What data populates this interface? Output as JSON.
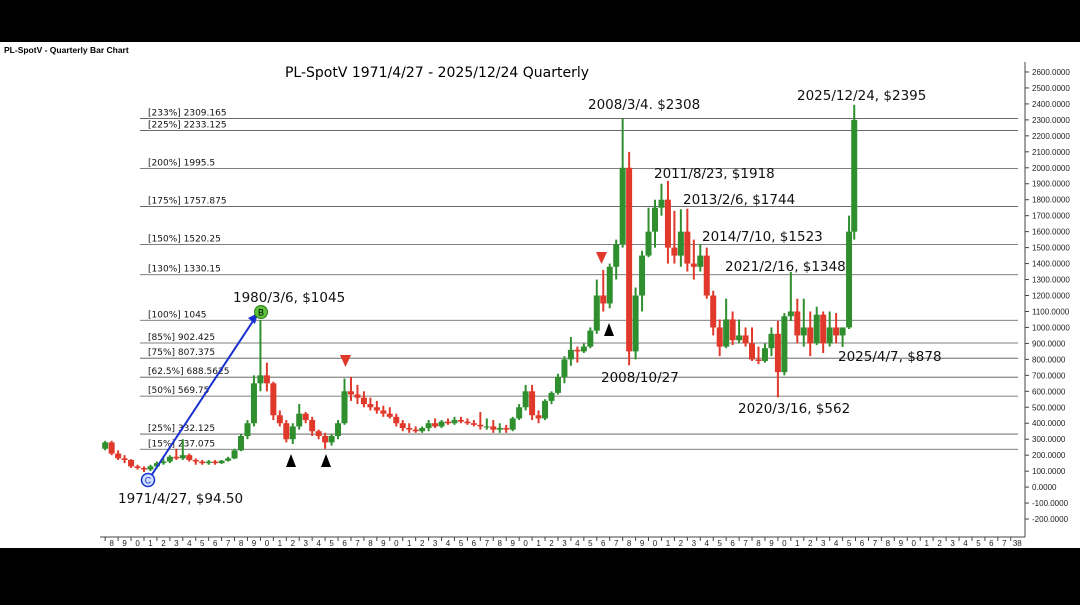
{
  "chart_data": {
    "type": "ohlc",
    "corner_title": "PL-SpotV - Quarterly Bar Chart",
    "title": "PL-SpotV 1971/4/27 - 2025/12/24 Quarterly",
    "up_color": "#2f8f2f",
    "down_color": "#e0382a",
    "x": [
      1968.0,
      1968.5,
      1969.0,
      1969.5,
      1970.0,
      1970.5,
      1971.0,
      1971.5,
      1972.0,
      1972.5,
      1973.0,
      1973.5,
      1974.0,
      1974.5,
      1975.0,
      1975.5,
      1976.0,
      1976.5,
      1977.0,
      1977.5,
      1978.0,
      1978.5,
      1979.0,
      1979.5,
      1980.0,
      1980.5,
      1981.0,
      1981.5,
      1982.0,
      1982.5,
      1983.0,
      1983.5,
      1984.0,
      1984.5,
      1985.0,
      1985.5,
      1986.0,
      1986.5,
      1987.0,
      1987.5,
      1988.0,
      1988.5,
      1989.0,
      1989.5,
      1990.0,
      1990.5,
      1991.0,
      1991.5,
      1992.0,
      1992.5,
      1993.0,
      1993.5,
      1994.0,
      1994.5,
      1995.0,
      1995.5,
      1996.0,
      1996.5,
      1997.0,
      1997.5,
      1998.0,
      1998.5,
      1999.0,
      1999.5,
      2000.0,
      2000.5,
      2001.0,
      2001.5,
      2002.0,
      2002.5,
      2003.0,
      2003.5,
      2004.0,
      2004.5,
      2005.0,
      2005.5,
      2006.0,
      2006.5,
      2007.0,
      2007.5,
      2008.0,
      2008.5,
      2009.0,
      2009.5,
      2010.0,
      2010.5,
      2011.0,
      2011.5,
      2012.0,
      2012.5,
      2013.0,
      2013.5,
      2014.0,
      2014.5,
      2015.0,
      2015.5,
      2016.0,
      2016.5,
      2017.0,
      2017.5,
      2018.0,
      2018.5,
      2019.0,
      2019.5,
      2020.0,
      2020.5,
      2021.0,
      2021.5,
      2022.0,
      2022.5,
      2023.0,
      2023.5,
      2024.0,
      2024.5,
      2025.0,
      2025.5,
      2025.9
    ],
    "open": [
      240,
      280,
      210,
      180,
      170,
      130,
      120,
      110,
      130,
      150,
      160,
      190,
      180,
      200,
      170,
      160,
      150,
      160,
      150,
      165,
      180,
      230,
      320,
      400,
      650,
      700,
      650,
      450,
      400,
      300,
      380,
      460,
      420,
      350,
      320,
      280,
      320,
      400,
      600,
      580,
      560,
      520,
      500,
      480,
      460,
      440,
      400,
      370,
      360,
      350,
      370,
      400,
      380,
      410,
      400,
      420,
      410,
      400,
      390,
      380,
      380,
      360,
      370,
      360,
      430,
      500,
      600,
      450,
      430,
      540,
      590,
      690,
      800,
      860,
      850,
      880,
      980,
      1200,
      1150,
      1380,
      1520,
      2000,
      850,
      1200,
      1450,
      1600,
      1750,
      1800,
      1500,
      1450,
      1600,
      1400,
      1380,
      1450,
      1200,
      1000,
      880,
      1050,
      920,
      950,
      900,
      800,
      790,
      870,
      960,
      720,
      1070,
      1100,
      950,
      1000,
      900,
      1080,
      900,
      1000,
      950,
      1000,
      1600
    ],
    "high": [
      290,
      290,
      230,
      200,
      175,
      140,
      130,
      140,
      160,
      180,
      200,
      240,
      300,
      210,
      180,
      170,
      170,
      170,
      170,
      190,
      240,
      330,
      420,
      700,
      1045,
      780,
      660,
      480,
      420,
      400,
      520,
      470,
      440,
      360,
      340,
      330,
      420,
      680,
      690,
      640,
      600,
      560,
      540,
      510,
      500,
      460,
      420,
      400,
      380,
      380,
      420,
      430,
      420,
      430,
      440,
      440,
      430,
      420,
      470,
      430,
      420,
      400,
      390,
      440,
      520,
      640,
      640,
      480,
      550,
      600,
      710,
      820,
      940,
      880,
      900,
      1000,
      1300,
      1360,
      1400,
      1550,
      2308,
      2100,
      1250,
      1480,
      1750,
      1800,
      1900,
      1918,
      1730,
      1740,
      1744,
      1550,
      1523,
      1500,
      1230,
      1050,
      1180,
      1100,
      1050,
      1000,
      1000,
      880,
      900,
      1000,
      1040,
      1090,
      1348,
      1180,
      1180,
      1100,
      1130,
      1100,
      1100,
      1090,
      1000,
      1700,
      2395
    ],
    "low": [
      230,
      200,
      170,
      150,
      120,
      110,
      94.5,
      100,
      120,
      140,
      150,
      170,
      170,
      160,
      140,
      140,
      140,
      140,
      145,
      160,
      175,
      225,
      300,
      380,
      600,
      600,
      420,
      380,
      280,
      270,
      360,
      400,
      320,
      300,
      240,
      260,
      300,
      390,
      540,
      520,
      500,
      480,
      460,
      440,
      430,
      380,
      350,
      340,
      340,
      340,
      350,
      370,
      370,
      390,
      390,
      400,
      390,
      380,
      360,
      360,
      340,
      340,
      340,
      350,
      420,
      480,
      420,
      400,
      420,
      520,
      580,
      650,
      760,
      780,
      840,
      870,
      960,
      1100,
      1120,
      1300,
      1500,
      763,
      800,
      1100,
      1440,
      1500,
      1700,
      1400,
      1400,
      1380,
      1350,
      1300,
      1350,
      1180,
      950,
      820,
      870,
      890,
      900,
      880,
      790,
      770,
      780,
      820,
      562,
      700,
      1040,
      900,
      880,
      820,
      890,
      840,
      880,
      900,
      878,
      990,
      1550
    ],
    "close": [
      280,
      210,
      180,
      170,
      130,
      120,
      110,
      130,
      150,
      160,
      190,
      180,
      200,
      170,
      160,
      150,
      160,
      150,
      165,
      180,
      230,
      320,
      400,
      650,
      700,
      650,
      450,
      400,
      300,
      380,
      460,
      420,
      350,
      320,
      280,
      320,
      400,
      600,
      580,
      560,
      520,
      500,
      480,
      460,
      440,
      400,
      370,
      360,
      350,
      370,
      400,
      380,
      410,
      400,
      420,
      410,
      400,
      390,
      380,
      380,
      360,
      370,
      360,
      430,
      500,
      600,
      450,
      430,
      540,
      590,
      690,
      800,
      860,
      850,
      880,
      980,
      1200,
      1150,
      1380,
      1520,
      2000,
      850,
      1200,
      1450,
      1600,
      1750,
      1800,
      1500,
      1450,
      1600,
      1400,
      1380,
      1450,
      1200,
      1000,
      880,
      1050,
      920,
      950,
      900,
      800,
      790,
      870,
      960,
      720,
      1070,
      1100,
      950,
      1000,
      900,
      1080,
      900,
      1000,
      950,
      1000,
      1600,
      2300
    ],
    "xlim": [
      1967.6,
      2039.1
    ],
    "ylim": [
      -300,
      2650
    ],
    "xticks": [
      {
        "value": 1968,
        "label": "8"
      },
      {
        "value": 1969,
        "label": "9"
      },
      {
        "value": 1970,
        "label": "0"
      },
      {
        "value": 1971,
        "label": "1"
      },
      {
        "value": 1972,
        "label": "2"
      },
      {
        "value": 1973,
        "label": "3"
      },
      {
        "value": 1974,
        "label": "4"
      },
      {
        "value": 1975,
        "label": "5"
      },
      {
        "value": 1976,
        "label": "6"
      },
      {
        "value": 1977,
        "label": "7"
      },
      {
        "value": 1978,
        "label": "8"
      },
      {
        "value": 1979,
        "label": "9"
      },
      {
        "value": 1980,
        "label": "0"
      },
      {
        "value": 1981,
        "label": "1"
      },
      {
        "value": 1982,
        "label": "2"
      },
      {
        "value": 1983,
        "label": "3"
      },
      {
        "value": 1984,
        "label": "4"
      },
      {
        "value": 1985,
        "label": "5"
      },
      {
        "value": 1986,
        "label": "6"
      },
      {
        "value": 1987,
        "label": "7"
      },
      {
        "value": 1988,
        "label": "8"
      },
      {
        "value": 1989,
        "label": "9"
      },
      {
        "value": 1990,
        "label": "0"
      },
      {
        "value": 1991,
        "label": "1"
      },
      {
        "value": 1992,
        "label": "2"
      },
      {
        "value": 1993,
        "label": "3"
      },
      {
        "value": 1994,
        "label": "4"
      },
      {
        "value": 1995,
        "label": "5"
      },
      {
        "value": 1996,
        "label": "6"
      },
      {
        "value": 1997,
        "label": "7"
      },
      {
        "value": 1998,
        "label": "8"
      },
      {
        "value": 1999,
        "label": "9"
      },
      {
        "value": 2000,
        "label": "0"
      },
      {
        "value": 2001,
        "label": "1"
      },
      {
        "value": 2002,
        "label": "2"
      },
      {
        "value": 2003,
        "label": "3"
      },
      {
        "value": 2004,
        "label": "4"
      },
      {
        "value": 2005,
        "label": "5"
      },
      {
        "value": 2006,
        "label": "6"
      },
      {
        "value": 2007,
        "label": "7"
      },
      {
        "value": 2008,
        "label": "8"
      },
      {
        "value": 2009,
        "label": "9"
      },
      {
        "value": 2010,
        "label": "0"
      },
      {
        "value": 2011,
        "label": "1"
      },
      {
        "value": 2012,
        "label": "2"
      },
      {
        "value": 2013,
        "label": "3"
      },
      {
        "value": 2014,
        "label": "4"
      },
      {
        "value": 2015,
        "label": "5"
      },
      {
        "value": 2016,
        "label": "6"
      },
      {
        "value": 2017,
        "label": "7"
      },
      {
        "value": 2018,
        "label": "8"
      },
      {
        "value": 2019,
        "label": "9"
      },
      {
        "value": 2020,
        "label": "0"
      },
      {
        "value": 2021,
        "label": "1"
      },
      {
        "value": 2022,
        "label": "2"
      },
      {
        "value": 2023,
        "label": "3"
      },
      {
        "value": 2024,
        "label": "4"
      },
      {
        "value": 2025,
        "label": "5"
      },
      {
        "value": 2026,
        "label": "6"
      },
      {
        "value": 2027,
        "label": "7"
      },
      {
        "value": 2028,
        "label": "8"
      },
      {
        "value": 2029,
        "label": "9"
      },
      {
        "value": 2030,
        "label": "0"
      },
      {
        "value": 2031,
        "label": "1"
      },
      {
        "value": 2032,
        "label": "2"
      },
      {
        "value": 2033,
        "label": "3"
      },
      {
        "value": 2034,
        "label": "4"
      },
      {
        "value": 2035,
        "label": "5"
      },
      {
        "value": 2036,
        "label": "6"
      },
      {
        "value": 2037,
        "label": "7"
      },
      {
        "value": 2038,
        "label": "38"
      }
    ],
    "yticks": [
      {
        "value": 2600,
        "label": "2600.0000"
      },
      {
        "value": 2500,
        "label": "2500.0000"
      },
      {
        "value": 2400,
        "label": "2400.0000"
      },
      {
        "value": 2300,
        "label": "2300.0000"
      },
      {
        "value": 2200,
        "label": "2200.0000"
      },
      {
        "value": 2100,
        "label": "2100.0000"
      },
      {
        "value": 2000,
        "label": "2000.0000"
      },
      {
        "value": 1900,
        "label": "1900.0000"
      },
      {
        "value": 1800,
        "label": "1800.0000"
      },
      {
        "value": 1700,
        "label": "1700.0000"
      },
      {
        "value": 1600,
        "label": "1600.0000"
      },
      {
        "value": 1500,
        "label": "1500.0000"
      },
      {
        "value": 1400,
        "label": "1400.0000"
      },
      {
        "value": 1300,
        "label": "1300.0000"
      },
      {
        "value": 1200,
        "label": "1200.0000"
      },
      {
        "value": 1100,
        "label": "1100.0000"
      },
      {
        "value": 1000,
        "label": "1000.0000"
      },
      {
        "value": 900,
        "label": "900.0000"
      },
      {
        "value": 800,
        "label": "800.0000"
      },
      {
        "value": 700,
        "label": "700.0000"
      },
      {
        "value": 600,
        "label": "600.0000"
      },
      {
        "value": 500,
        "label": "500.0000"
      },
      {
        "value": 400,
        "label": "400.0000"
      },
      {
        "value": 300,
        "label": "300.0000"
      },
      {
        "value": 200,
        "label": "200.0000"
      },
      {
        "value": 100,
        "label": "100.0000"
      },
      {
        "value": 0,
        "label": "0.0000"
      },
      {
        "value": -100,
        "label": "-100.0000"
      },
      {
        "value": -200,
        "label": "-200.0000"
      }
    ],
    "levels": [
      {
        "value": 2309.165,
        "label": "[233%] 2309.165"
      },
      {
        "value": 2233.125,
        "label": "[225%] 2233.125"
      },
      {
        "value": 1995.5,
        "label": "[200%] 1995.5"
      },
      {
        "value": 1757.875,
        "label": "[175%] 1757.875"
      },
      {
        "value": 1520.25,
        "label": "[150%] 1520.25"
      },
      {
        "value": 1330.15,
        "label": "[130%] 1330.15"
      },
      {
        "value": 1045,
        "label": "[100%] 1045"
      },
      {
        "value": 902.425,
        "label": "[85%] 902.425"
      },
      {
        "value": 807.375,
        "label": "[75%] 807.375"
      },
      {
        "value": 688.5625,
        "label": "[62.5%] 688.5625"
      },
      {
        "value": 569.75,
        "label": "[50%] 569.75"
      },
      {
        "value": 332.125,
        "label": "[25%] 332.125"
      },
      {
        "value": 237.075,
        "label": "[15%] 237.075"
      }
    ],
    "annotations": [
      "1971/4/27, $94.50",
      "1980/3/6, $1045",
      "2008/3/4. $2308",
      "2008/10/27",
      "2011/8/23, $1918",
      "2013/2/6, $1744",
      "2014/7/10, $1523",
      "2021/2/16, $1348",
      "2020/3/16, $562",
      "2025/4/7, $878",
      "2025/12/24, $2395"
    ],
    "markers": [
      "B",
      "C"
    ]
  }
}
